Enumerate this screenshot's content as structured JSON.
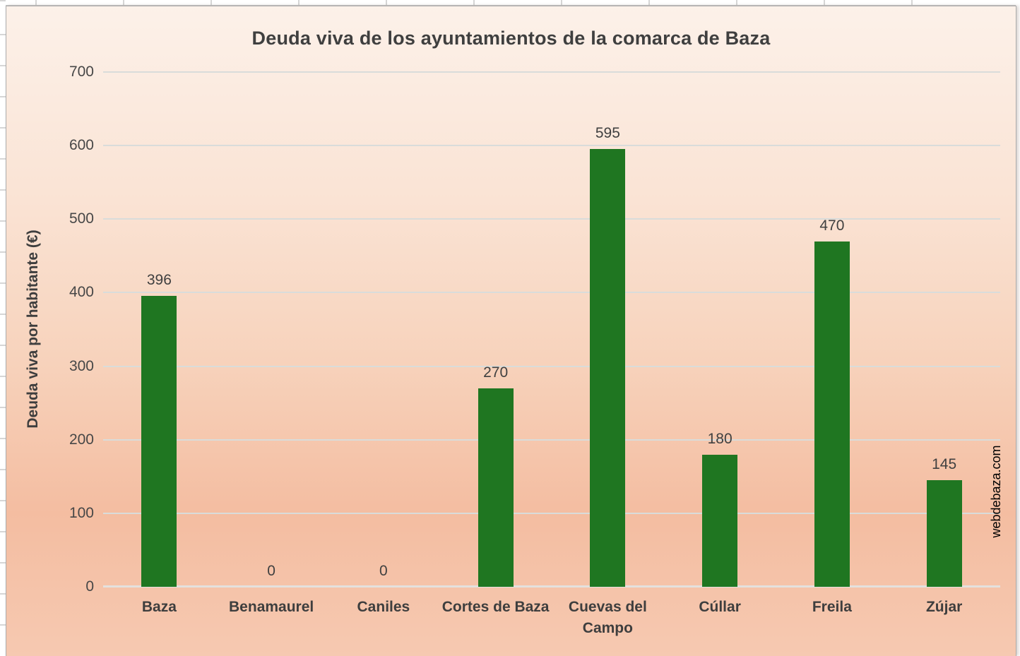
{
  "window": {
    "type": "excel-spreadsheet-with-embedded-chart",
    "visible_sheet_cells": "white cells with gray gridlines along top and left edges"
  },
  "chart_data": {
    "type": "bar",
    "title": "Deuda viva de los ayuntamientos de la comarca de Baza",
    "ylabel": "Deuda viva por habitante (€)",
    "xlabel": "",
    "categories": [
      "Baza",
      "Benamaurel",
      "Caniles",
      "Cortes de Baza",
      "Cuevas del Campo",
      "Cúllar",
      "Freila",
      "Zújar"
    ],
    "values": [
      396,
      0,
      0,
      270,
      595,
      180,
      470,
      145
    ],
    "data_labels": [
      "396",
      "0",
      "0",
      "270",
      "595",
      "180",
      "470",
      "145"
    ],
    "ylim": [
      0,
      700
    ],
    "yticks": [
      0,
      100,
      200,
      300,
      400,
      500,
      600,
      700
    ],
    "grid": "horizontal",
    "legend": "none",
    "watermark": "webdebaza.com"
  },
  "colors": {
    "bar": "#1f7621",
    "gridline": "#d9dcda",
    "axis_line": "#e4e1de",
    "title_text": "#3f3f3f",
    "tick_text": "#474747",
    "label_text": "#404040",
    "watermark_text": "#000000",
    "chart_border": "#ababab",
    "gradient_stops": [
      [
        "0%",
        "#fcf1e9"
      ],
      [
        "30%",
        "#fae3d4"
      ],
      [
        "55%",
        "#f7d2bb"
      ],
      [
        "78%",
        "#f4bda1"
      ],
      [
        "100%",
        "#f6c9b1"
      ]
    ]
  }
}
